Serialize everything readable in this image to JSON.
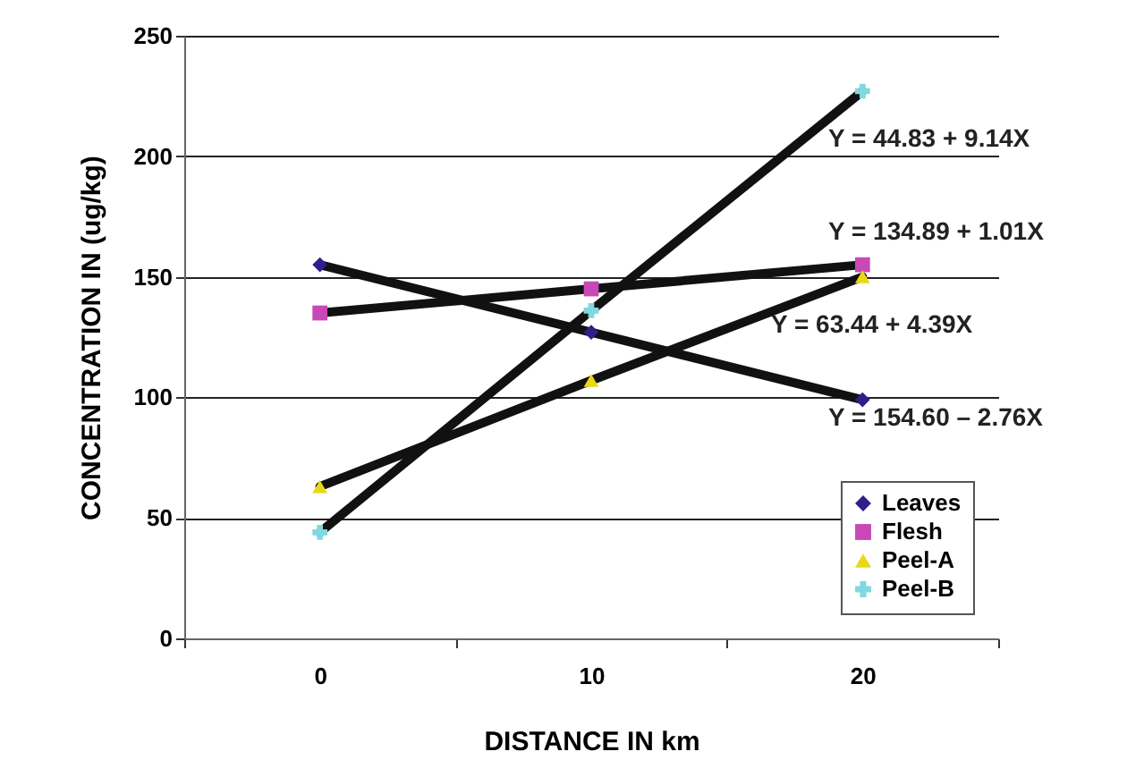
{
  "chart_data": {
    "type": "line",
    "xlabel": "DISTANCE IN km",
    "ylabel": "CONCENTRATION IN (ug/kg)",
    "categories": [
      "0",
      "10",
      "20"
    ],
    "series": [
      {
        "name": "Leaves",
        "color": "#2e1f8a",
        "marker": "diamond",
        "values": [
          155,
          127,
          99
        ]
      },
      {
        "name": "Flesh",
        "color": "#c848b8",
        "marker": "square",
        "values": [
          135,
          145,
          155
        ]
      },
      {
        "name": "Peel-A",
        "color": "#e8d818",
        "marker": "triangle",
        "values": [
          63,
          107,
          150
        ]
      },
      {
        "name": "Peel-B",
        "color": "#80d8e0",
        "marker": "cross",
        "values": [
          44,
          136,
          227
        ]
      }
    ],
    "annotations": [
      "Y = 44.83 + 9.14X",
      "Y = 134.89 + 1.01X",
      "Y = 63.44 + 4.39X",
      "Y = 154.60 – 2.76X"
    ],
    "ylim": [
      0,
      250
    ],
    "yticks": [
      0,
      50,
      100,
      150,
      200,
      250
    ],
    "grid": "y",
    "legend": "bottom right",
    "line_style": "solid"
  }
}
